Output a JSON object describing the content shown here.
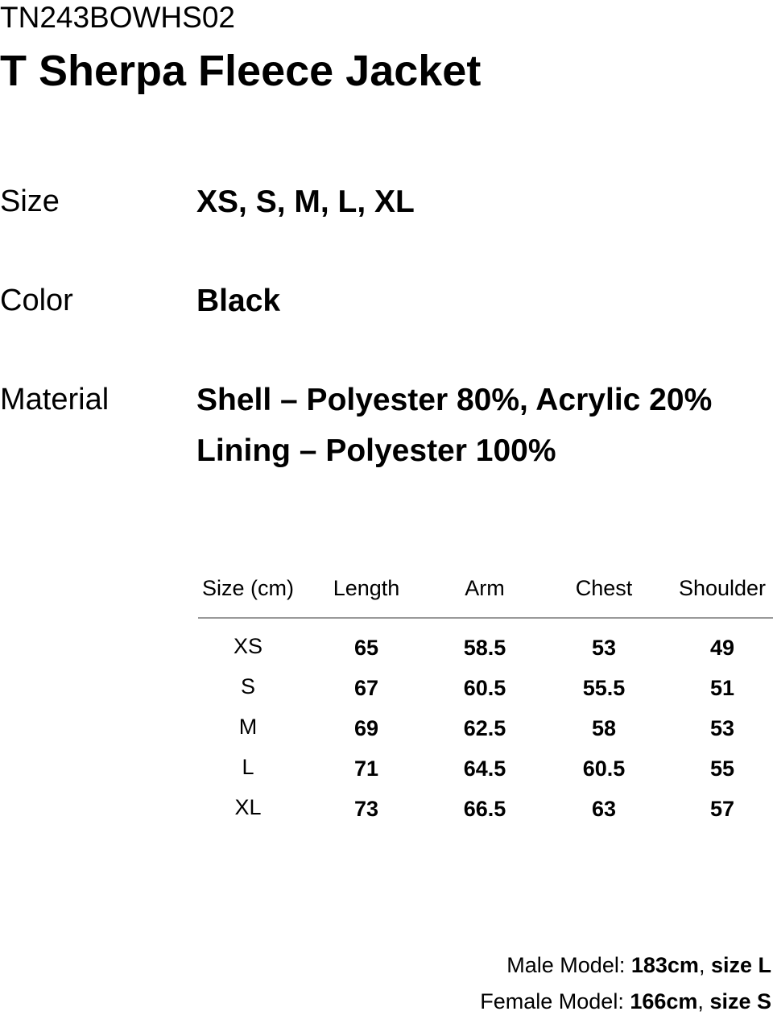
{
  "product": {
    "code": "TN243BOWHS02",
    "title": "T Sherpa Fleece Jacket"
  },
  "specs": {
    "size_label": "Size",
    "size_value": "XS, S, M, L, XL",
    "color_label": "Color",
    "color_value": "Black",
    "material_label": "Material",
    "material_lines": [
      "Shell – Polyester 80%, Acrylic 20%",
      "Lining – Polyester 100%"
    ]
  },
  "size_table": {
    "headers": [
      "Size (cm)",
      "Length",
      "Arm",
      "Chest",
      "Shoulder"
    ],
    "rows": [
      [
        "XS",
        "65",
        "58.5",
        "53",
        "49"
      ],
      [
        "S",
        "67",
        "60.5",
        "55.5",
        "51"
      ],
      [
        "M",
        "69",
        "62.5",
        "58",
        "53"
      ],
      [
        "L",
        "71",
        "64.5",
        "60.5",
        "55"
      ],
      [
        "XL",
        "73",
        "66.5",
        "63",
        "57"
      ]
    ]
  },
  "models": {
    "male_label": "Male Model:",
    "male_height": "183cm",
    "male_sep": ",",
    "male_size": "size L",
    "female_label": "Female Model:",
    "female_height": "166cm",
    "female_sep": ",",
    "female_size": "size S"
  }
}
